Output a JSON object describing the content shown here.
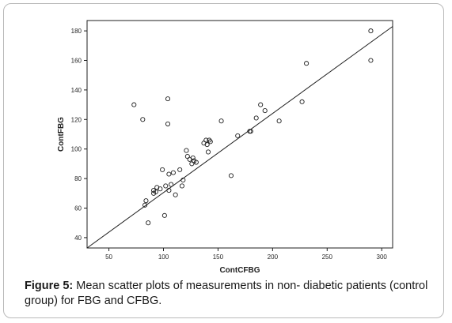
{
  "chart_data": {
    "type": "scatter",
    "xlabel": "ContCFBG",
    "ylabel": "ContFBG",
    "xlim": [
      30,
      310
    ],
    "ylim": [
      33,
      187
    ],
    "x_ticks": [
      50,
      100,
      150,
      200,
      250,
      300
    ],
    "y_ticks": [
      40,
      60,
      80,
      100,
      120,
      140,
      160,
      180
    ],
    "grid": false,
    "reference_line": {
      "type": "identity",
      "from": [
        30,
        33
      ],
      "to": [
        310,
        183
      ]
    },
    "series": [
      {
        "x": [
          73,
          81,
          83,
          84,
          86,
          91,
          91,
          93,
          94,
          97,
          99,
          101,
          102,
          104,
          104,
          105,
          105,
          107,
          109,
          111,
          115,
          117,
          118,
          121,
          122,
          124,
          126,
          127,
          128,
          128,
          130,
          137,
          139,
          140,
          141,
          142,
          143,
          153,
          162,
          168,
          179,
          180,
          185,
          189,
          193,
          206,
          227,
          231,
          290,
          290
        ],
        "y": [
          130,
          120,
          62,
          65,
          50,
          70,
          72,
          71,
          74,
          73,
          86,
          55,
          75,
          117,
          134,
          83,
          72,
          76,
          84,
          69,
          86,
          75,
          79,
          99,
          95,
          93,
          90,
          94,
          92,
          92,
          91,
          104,
          106,
          103,
          98,
          106,
          105,
          119,
          82,
          109,
          112,
          112,
          121,
          130,
          126,
          119,
          132,
          158,
          160,
          180
        ]
      }
    ]
  },
  "caption": {
    "lead": "Figure 5:",
    "text": " Mean scatter plots of measurements in non- diabetic patients (control group) for FBG and CFBG."
  },
  "colors": {
    "ink": "#1f1f1f",
    "frame": "#b9b9b9"
  }
}
